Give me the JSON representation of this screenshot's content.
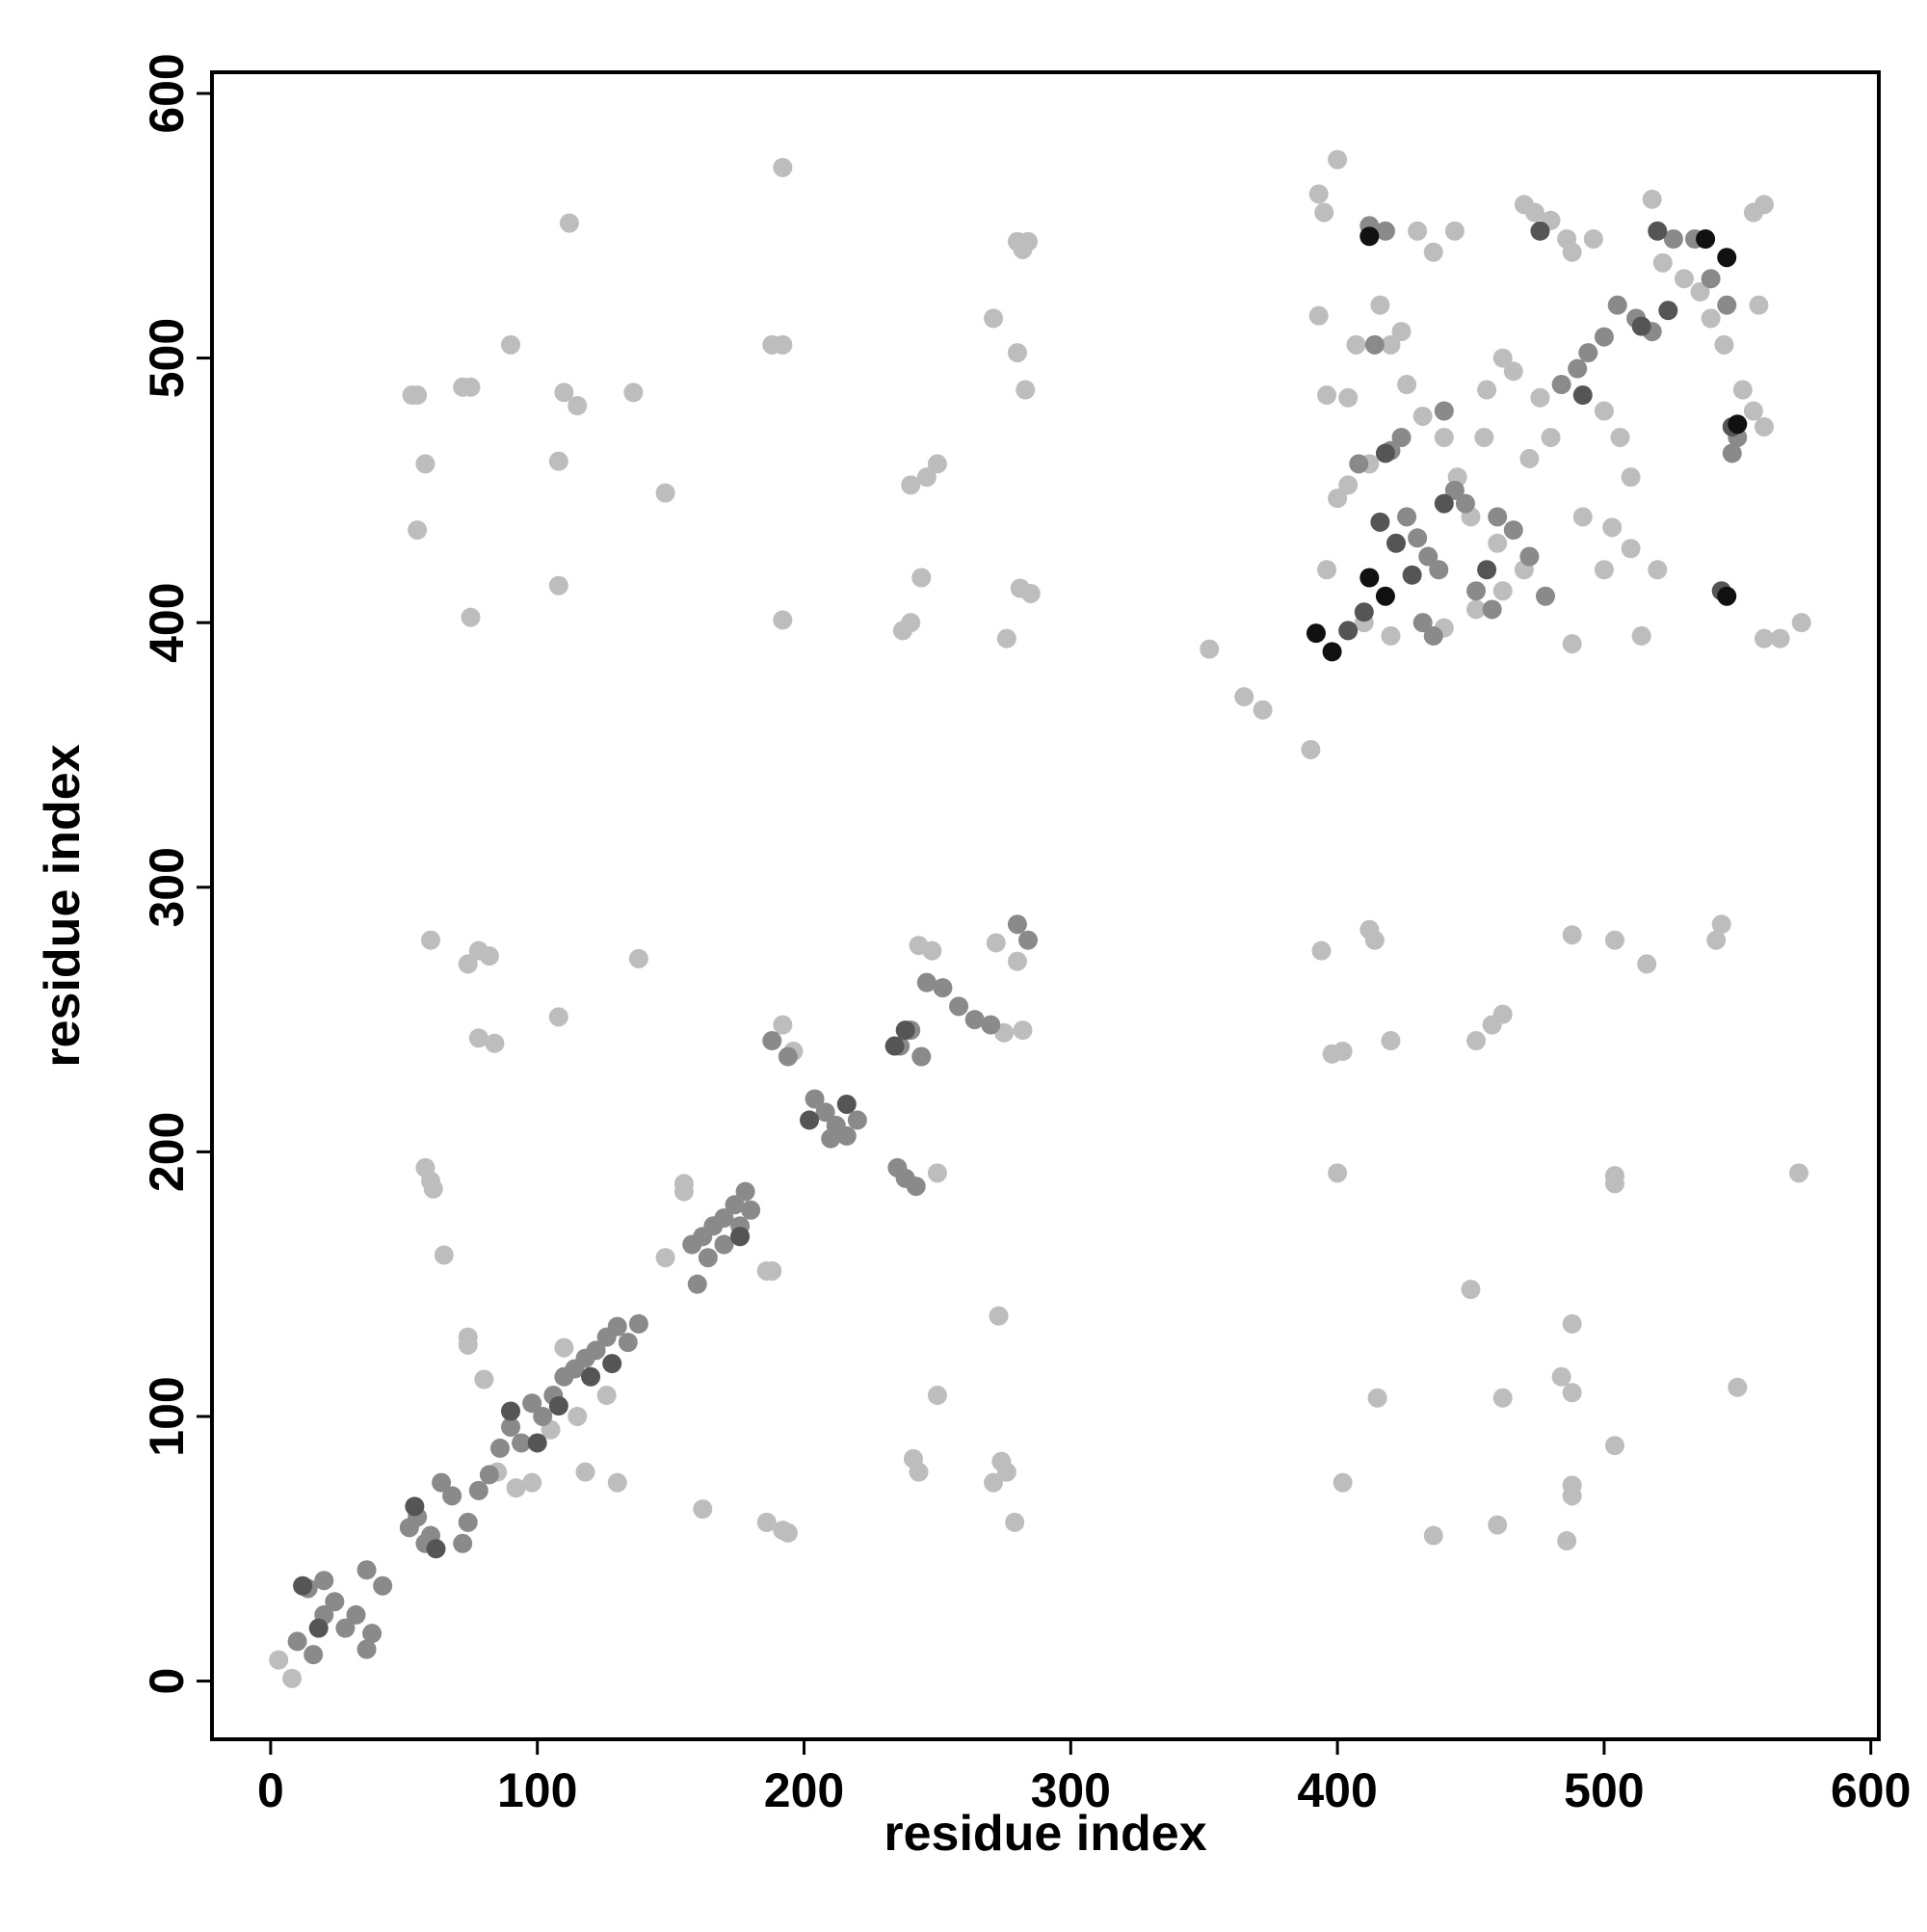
{
  "chart_data": {
    "type": "scatter",
    "xlabel": "residue index",
    "ylabel": "residue index",
    "xlim": [
      -22,
      603
    ],
    "ylim": [
      -22,
      608
    ],
    "xticks": [
      0,
      100,
      200,
      300,
      400,
      500,
      600
    ],
    "yticks": [
      0,
      100,
      200,
      300,
      400,
      500,
      600
    ],
    "grid": false,
    "series": [
      {
        "color": "#bdbdbd",
        "x": [
          3,
          8,
          53,
          55,
          58,
          55,
          72,
          75,
          75,
          108,
          108,
          110,
          112,
          115,
          136,
          148,
          90,
          188,
          192,
          192,
          192,
          237,
          240,
          240,
          244,
          246,
          250,
          271,
          276,
          280,
          282,
          284,
          281,
          285,
          280,
          283,
          58,
          60,
          61,
          65,
          60,
          74,
          78,
          82,
          78,
          84,
          108,
          138,
          148,
          155,
          155,
          162,
          186,
          188,
          186,
          192,
          194,
          192,
          196,
          243,
          248,
          250,
          250,
          241,
          243,
          271,
          274,
          276,
          273,
          279,
          272,
          280,
          282,
          275,
          74,
          74,
          80,
          85,
          92,
          98,
          118,
          130,
          126,
          110,
          115,
          105,
          352,
          365,
          372,
          390,
          394,
          398,
          402,
          412,
          414,
          420,
          400,
          402,
          415,
          436,
          450,
          452,
          458,
          462,
          460,
          462,
          484,
          488,
          488,
          488,
          488,
          486,
          488,
          504,
          504,
          504,
          504,
          516,
          542,
          544,
          550,
          573,
          393,
          395,
          393,
          396,
          400,
          404,
          407,
          412,
          416,
          420,
          424,
          430,
          436,
          444,
          456,
          462,
          470,
          474,
          480,
          486,
          488,
          496,
          500,
          503,
          506,
          510,
          514,
          518,
          522,
          530,
          536,
          540,
          545,
          552,
          556,
          560,
          558,
          560,
          566,
          574,
          556,
          560,
          520,
          510,
          500,
          492,
          488,
          470,
          460,
          450,
          445,
          440,
          432,
          426,
          410,
          420,
          396,
          400,
          404,
          472,
          480,
          476,
          466,
          455,
          462,
          452,
          440
        ],
        "values": [
          8,
          1,
          486,
          486,
          460,
          435,
          489,
          489,
          402,
          414,
          461,
          487,
          551,
          482,
          487,
          449,
          505,
          505,
          505,
          572,
          401,
          397,
          400,
          452,
          417,
          455,
          460,
          515,
          394,
          544,
          541,
          544,
          413,
          411,
          502,
          488,
          194,
          189,
          186,
          161,
          280,
          271,
          276,
          274,
          243,
          241,
          251,
          273,
          160,
          188,
          185,
          65,
          155,
          155,
          60,
          57,
          56,
          248,
          238,
          278,
          276,
          192,
          108,
          84,
          79,
          75,
          83,
          79,
          138,
          60,
          279,
          272,
          246,
          245,
          127,
          130,
          114,
          79,
          73,
          75,
          79,
          75,
          108,
          126,
          100,
          95,
          390,
          372,
          367,
          352,
          276,
          237,
          238,
          284,
          280,
          242,
          192,
          75,
          107,
          55,
          148,
          242,
          248,
          252,
          59,
          107,
          115,
          135,
          109,
          74,
          70,
          53,
          282,
          280,
          89,
          188,
          191,
          271,
          280,
          286,
          111,
          192,
          562,
          555,
          516,
          486,
          575,
          485,
          505,
          460,
          520,
          505,
          510,
          548,
          540,
          548,
          488,
          500,
          558,
          555,
          552,
          545,
          540,
          545,
          480,
          436,
          470,
          455,
          395,
          560,
          536,
          530,
          525,
          515,
          505,
          488,
          480,
          474,
          520,
          394,
          394,
          400,
          555,
          558,
          420,
          428,
          420,
          440,
          392,
          420,
          430,
          440,
          455,
          470,
          478,
          490,
          400,
          395,
          420,
          447,
          452,
          462,
          470,
          485,
          495,
          470,
          412,
          405,
          398
        ]
      },
      {
        "color": "#8a8a8a",
        "x": [
          10,
          14,
          20,
          24,
          28,
          32,
          36,
          38,
          16,
          20,
          36,
          42,
          52,
          55,
          58,
          60,
          64,
          68,
          72,
          74,
          78,
          82,
          86,
          90,
          94,
          98,
          102,
          106,
          110,
          114,
          118,
          122,
          126,
          130,
          134,
          138,
          158,
          162,
          166,
          170,
          174,
          178,
          180,
          176,
          170,
          164,
          160,
          204,
          208,
          212,
          216,
          220,
          210,
          235,
          238,
          242,
          236,
          240,
          244,
          246,
          252,
          258,
          264,
          270,
          280,
          284,
          188,
          194,
          420,
          424,
          430,
          434,
          438,
          444,
          448,
          452,
          458,
          460,
          466,
          472,
          478,
          484,
          490,
          494,
          500,
          505,
          512,
          518,
          526,
          534,
          540,
          546,
          548,
          550,
          426,
          412,
          418,
          414,
          408,
          440,
          436,
          432
        ],
        "values": [
          15,
          35,
          25,
          30,
          20,
          25,
          12,
          18,
          10,
          38,
          42,
          36,
          58,
          62,
          52,
          55,
          75,
          70,
          52,
          60,
          72,
          78,
          88,
          96,
          90,
          105,
          100,
          108,
          115,
          118,
          122,
          125,
          130,
          134,
          128,
          135,
          165,
          168,
          172,
          175,
          180,
          185,
          178,
          172,
          165,
          160,
          150,
          220,
          215,
          210,
          206,
          212,
          205,
          194,
          190,
          187,
          240,
          246,
          236,
          264,
          262,
          255,
          250,
          248,
          286,
          280,
          242,
          236,
          465,
          470,
          432,
          425,
          420,
          450,
          445,
          412,
          405,
          440,
          435,
          425,
          410,
          490,
          496,
          502,
          508,
          520,
          515,
          510,
          545,
          545,
          530,
          520,
          464,
          470,
          440,
          550,
          548,
          505,
          460,
          480,
          395,
          400
        ]
      },
      {
        "color": "#555555",
        "x": [
          12,
          18,
          54,
          62,
          90,
          100,
          108,
          120,
          128,
          176,
          202,
          216,
          234,
          238,
          422,
          428,
          440,
          456,
          476,
          492,
          514,
          520,
          524,
          544,
          548,
          410,
          404,
          416,
          418
        ],
        "values": [
          36,
          20,
          66,
          50,
          102,
          90,
          104,
          115,
          120,
          168,
          212,
          218,
          240,
          246,
          430,
          418,
          445,
          420,
          548,
          486,
          512,
          548,
          518,
          412,
          474,
          404,
          397,
          438,
          464
        ]
      },
      {
        "color": "#111111",
        "x": [
          392,
          398,
          412,
          418,
          412,
          538,
          546,
          546,
          550
        ],
        "values": [
          396,
          389,
          417,
          410,
          546,
          545,
          538,
          410,
          475
        ]
      }
    ]
  }
}
